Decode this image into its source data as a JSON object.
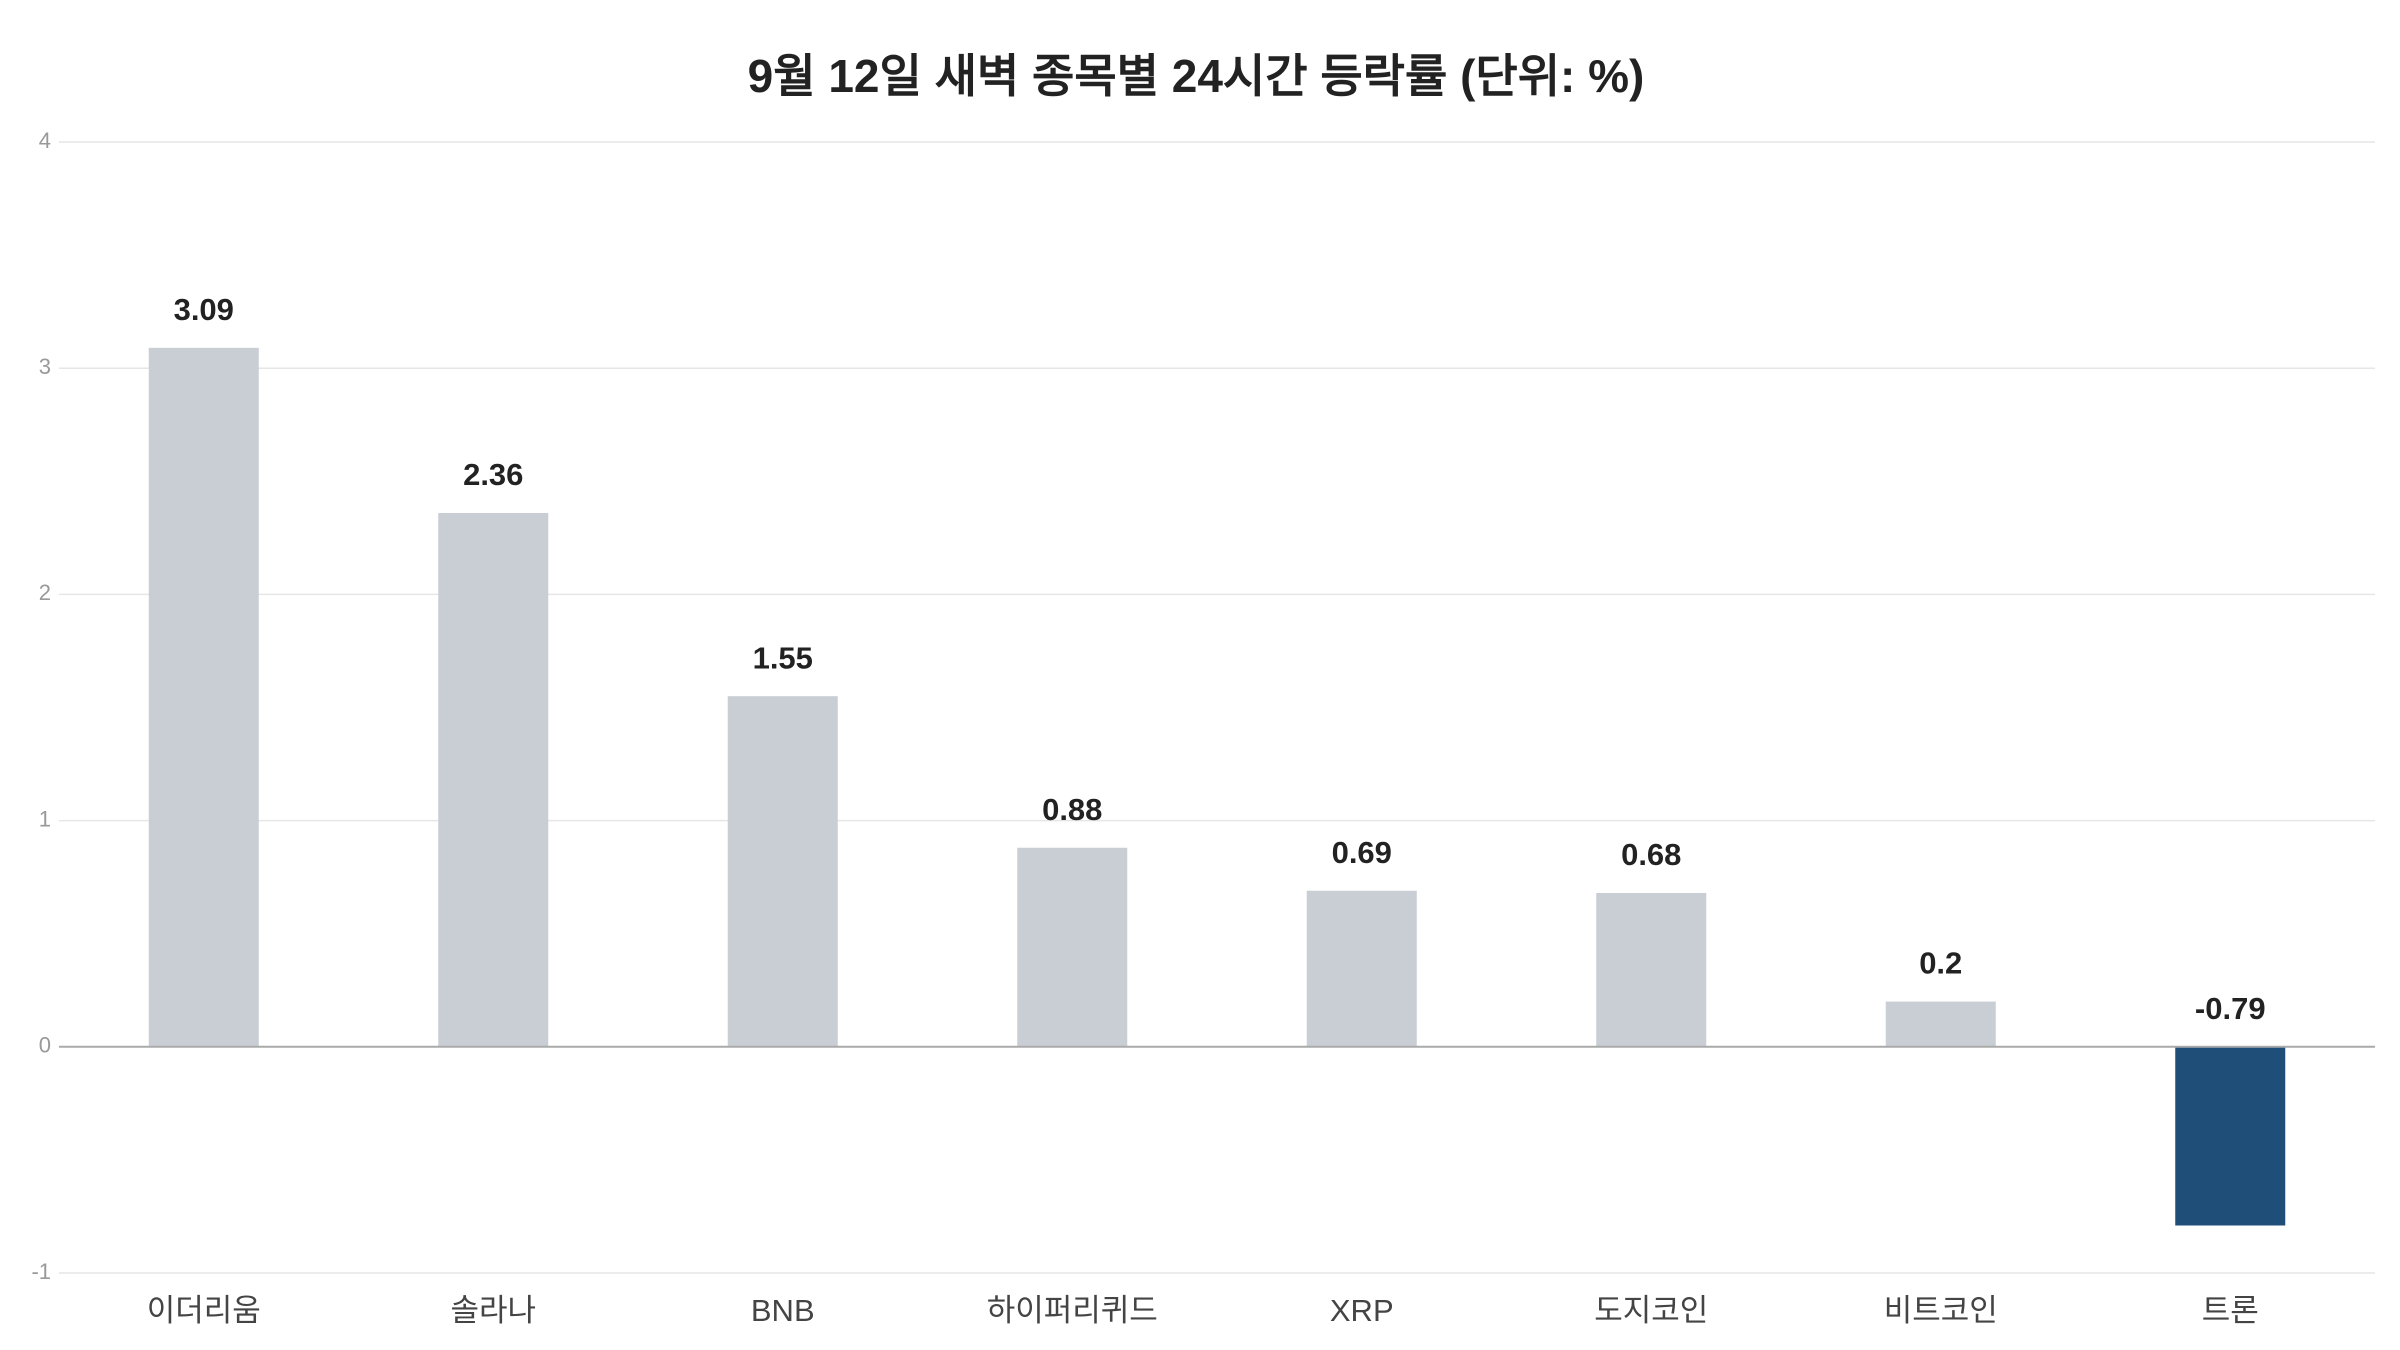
{
  "chart_data": {
    "type": "bar",
    "title": "9월 12일 새벽 종목별 24시간 등락률 (단위: %)",
    "categories": [
      "이더리움",
      "솔라나",
      "BNB",
      "하이퍼리퀴드",
      "XRP",
      "도지코인",
      "비트코인",
      "트론"
    ],
    "values": [
      3.09,
      2.36,
      1.55,
      0.88,
      0.69,
      0.68,
      0.2,
      -0.79
    ],
    "colors": [
      "#c9ced4",
      "#c9ced4",
      "#c9ced4",
      "#c9ced4",
      "#c9ced4",
      "#c9ced4",
      "#c9ced4",
      "#1f4e79"
    ],
    "ylim": [
      -1,
      4
    ],
    "yticks": [
      -1,
      0,
      1,
      2,
      3,
      4
    ],
    "grid": true
  }
}
